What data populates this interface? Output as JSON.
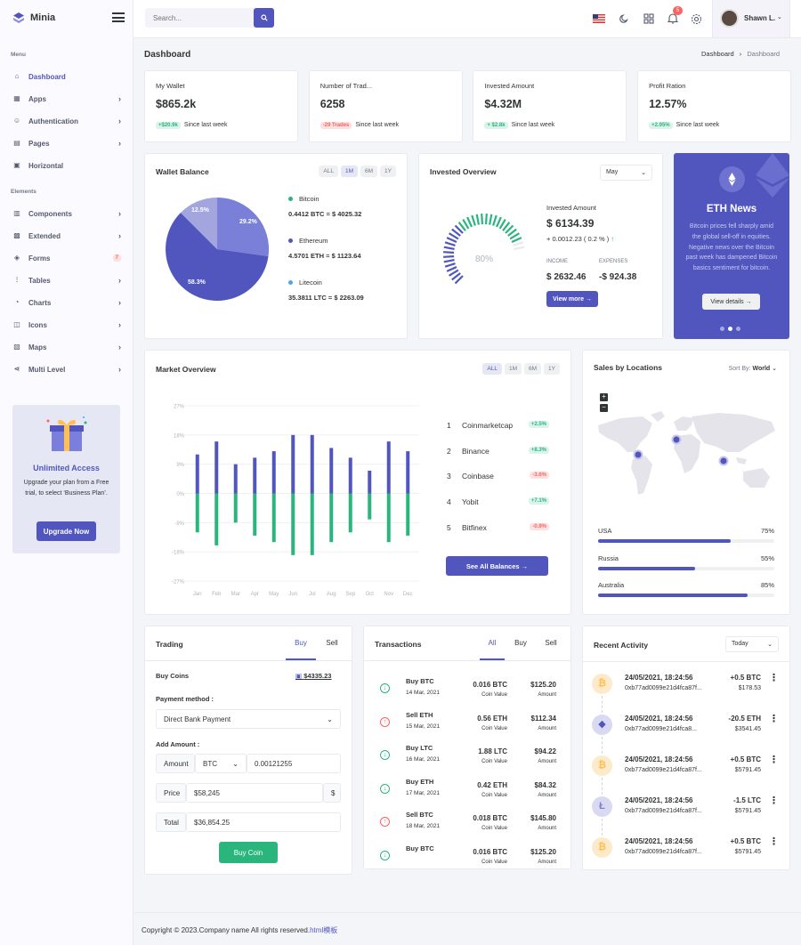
{
  "app": {
    "name": "Minia"
  },
  "topbar": {
    "search_placeholder": "Search...",
    "notif_count": "5",
    "user": "Shawn L."
  },
  "sidebar": {
    "menu_title": "Menu",
    "elements_title": "Elements",
    "items": [
      {
        "label": "Dashboard",
        "icon": "home-icon"
      },
      {
        "label": "Apps",
        "icon": "grid-icon"
      },
      {
        "label": "Authentication",
        "icon": "users-icon"
      },
      {
        "label": "Pages",
        "icon": "file-icon"
      },
      {
        "label": "Horizontal",
        "icon": "layout-icon"
      }
    ],
    "elements": [
      {
        "label": "Components",
        "icon": "briefcase-icon"
      },
      {
        "label": "Extended",
        "icon": "gift-icon"
      },
      {
        "label": "Forms",
        "icon": "box-icon",
        "badge": "7"
      },
      {
        "label": "Tables",
        "icon": "sliders-icon"
      },
      {
        "label": "Charts",
        "icon": "pie-icon"
      },
      {
        "label": "Icons",
        "icon": "cpu-icon"
      },
      {
        "label": "Maps",
        "icon": "map-icon"
      },
      {
        "label": "Multi Level",
        "icon": "share-icon"
      }
    ],
    "promo": {
      "title": "Unlimited Access",
      "text": "Upgrade your plan from a Free trial, to select ‘Business Plan’.",
      "button": "Upgrade Now"
    }
  },
  "page": {
    "title": "Dashboard",
    "breadcrumb": [
      "Dashboard",
      "Dashboard"
    ]
  },
  "stats": [
    {
      "label": "My Wallet",
      "value": "$865.2k",
      "badge": "+$20.9k",
      "badge_type": "g",
      "since": "Since last week"
    },
    {
      "label": "Number of Trad...",
      "value": "6258",
      "badge": "-29 Trades",
      "badge_type": "r",
      "since": "Since last week"
    },
    {
      "label": "Invested Amount",
      "value": "$4.32M",
      "badge": "+ $2.8k",
      "badge_type": "g",
      "since": "Since last week"
    },
    {
      "label": "Profit Ration",
      "value": "12.57%",
      "badge": "+2.95%",
      "badge_type": "g",
      "since": "Since last week"
    }
  ],
  "wallet": {
    "title": "Wallet Balance",
    "tabs": [
      "ALL",
      "1M",
      "6M",
      "1Y"
    ],
    "pie_labels": [
      "29.2%",
      "58.3%",
      "12.5%"
    ],
    "legend": [
      {
        "name": "Bitcoin",
        "value": "0.4412 BTC = $ 4025.32",
        "color": "#2ab57d"
      },
      {
        "name": "Ethereum",
        "value": "4.5701 ETH = $ 1123.64",
        "color": "#5156be"
      },
      {
        "name": "Litecoin",
        "value": "35.3811 LTC = $ 2263.09",
        "color": "#4ba6ef"
      }
    ]
  },
  "invested": {
    "title": "Invested Overview",
    "select": "May",
    "gauge": "80%",
    "label": "Invested Amount",
    "amount": "$ 6134.39",
    "change": "+ 0.0012.23 ( 0.2 % )",
    "income_label": "INCOME",
    "income": "$ 2632.46",
    "expenses_label": "EXPENSES",
    "expenses": "-$ 924.38",
    "button": "View more"
  },
  "news": {
    "title": "ETH News",
    "text": "Bitcoin prices fell sharply amid the global sell-off in equities. Negative news over the Bitcoin past week has dampened Bitcoin basics sentiment for bitcoin.",
    "button": "View details"
  },
  "market": {
    "title": "Market Overview",
    "tabs": [
      "ALL",
      "1M",
      "6M",
      "1Y"
    ],
    "yticks": [
      "27%",
      "18%",
      "9%",
      "0%",
      "-9%",
      "-18%",
      "-27%"
    ],
    "list": [
      {
        "n": "1",
        "name": "Coinmarketcap",
        "pct": "+2.5%",
        "t": "g"
      },
      {
        "n": "2",
        "name": "Binance",
        "pct": "+8.3%",
        "t": "g"
      },
      {
        "n": "3",
        "name": "Coinbase",
        "pct": "-3.6%",
        "t": "r"
      },
      {
        "n": "4",
        "name": "Yobit",
        "pct": "+7.1%",
        "t": "g"
      },
      {
        "n": "5",
        "name": "Bitfinex",
        "pct": "-0.9%",
        "t": "r"
      }
    ],
    "button": "See All Balances"
  },
  "chart_data": {
    "type": "bar",
    "categories": [
      "Jan",
      "Feb",
      "Mar",
      "Apr",
      "May",
      "Jun",
      "Jul",
      "Aug",
      "Sep",
      "Oct",
      "Nov",
      "Dec"
    ],
    "ylim": [
      -27,
      27
    ],
    "series": [
      {
        "values": [
          12,
          16,
          9,
          11,
          13,
          18,
          18,
          14,
          11,
          7,
          16,
          13
        ],
        "color": "#5156be"
      },
      {
        "values": [
          -12,
          -16,
          -9,
          -13,
          -15,
          -19,
          -19,
          -15,
          -12,
          -8,
          -15,
          -13
        ],
        "color": "#2ab57d"
      }
    ]
  },
  "locations": {
    "title": "Sales by Locations",
    "sort_label": "Sort By:",
    "sort_value": "World",
    "rows": [
      {
        "name": "USA",
        "pct": "75%",
        "value": 0.75
      },
      {
        "name": "Russia",
        "pct": "55%",
        "value": 0.55
      },
      {
        "name": "Australia",
        "pct": "85%",
        "value": 0.85
      }
    ]
  },
  "trading": {
    "title": "Trading",
    "tabs": [
      "Buy",
      "Sell"
    ],
    "buy_coins": "Buy Coins",
    "wallet_amount": "$4335.23",
    "payment_label": "Payment method :",
    "payment_value": "Direct Bank Payment",
    "add_amount": "Add Amount :",
    "amount_label": "Amount",
    "coin": "BTC",
    "amount_value": "0.00121255",
    "price_label": "Price",
    "price_value": "$58,245",
    "price_unit": "$",
    "total_label": "Total",
    "total_value": "$36,854.25",
    "button": "Buy Coin"
  },
  "transactions": {
    "title": "Transactions",
    "tabs": [
      "All",
      "Buy",
      "Sell"
    ],
    "rows": [
      {
        "type": "in",
        "name": "Buy BTC",
        "date": "14 Mar, 2021",
        "coin": "0.016 BTC",
        "coin_label": "Coin Value",
        "amount": "$125.20",
        "amount_label": "Amount"
      },
      {
        "type": "out",
        "name": "Sell ETH",
        "date": "15 Mar, 2021",
        "coin": "0.56 ETH",
        "coin_label": "Coin Value",
        "amount": "$112.34",
        "amount_label": "Amount"
      },
      {
        "type": "in",
        "name": "Buy LTC",
        "date": "16 Mar, 2021",
        "coin": "1.88 LTC",
        "coin_label": "Coin Value",
        "amount": "$94.22",
        "amount_label": "Amount"
      },
      {
        "type": "in",
        "name": "Buy ETH",
        "date": "17 Mar, 2021",
        "coin": "0.42 ETH",
        "coin_label": "Coin Value",
        "amount": "$84.32",
        "amount_label": "Amount"
      },
      {
        "type": "out",
        "name": "Sell BTC",
        "date": "18 Mar, 2021",
        "coin": "0.018 BTC",
        "coin_label": "Coin Value",
        "amount": "$145.80",
        "amount_label": "Amount"
      },
      {
        "type": "in",
        "name": "Buy BTC",
        "date": "",
        "coin": "0.016 BTC",
        "coin_label": "Coin Value",
        "amount": "$125.20",
        "amount_label": "Amount"
      }
    ]
  },
  "activity": {
    "title": "Recent Activity",
    "select": "Today",
    "rows": [
      {
        "coin": "btc",
        "date": "24/05/2021, 18:24:56",
        "hash": "0xb77ad0099e21d4fca87f...",
        "amt": "+0.5 BTC",
        "usd": "$178.53"
      },
      {
        "coin": "eth",
        "date": "24/05/2021, 18:24:56",
        "hash": "0xb77ad0099e21d4fca8...",
        "amt": "-20.5 ETH",
        "usd": "$3541.45"
      },
      {
        "coin": "btc",
        "date": "24/05/2021, 18:24:56",
        "hash": "0xb77ad0099e21d4fca87f...",
        "amt": "+0.5 BTC",
        "usd": "$5791.45"
      },
      {
        "coin": "ltc",
        "date": "24/05/2021, 18:24:56",
        "hash": "0xb77ad0099e21d4fca87f...",
        "amt": "-1.5 LTC",
        "usd": "$5791.45"
      },
      {
        "coin": "btc",
        "date": "24/05/2021, 18:24:56",
        "hash": "0xb77ad0099e21d4fca87f...",
        "amt": "+0.5 BTC",
        "usd": "$5791.45"
      }
    ]
  },
  "footer": {
    "text": "Copyright © 2023.Company name All rights reserved.",
    "link": "html模板"
  }
}
